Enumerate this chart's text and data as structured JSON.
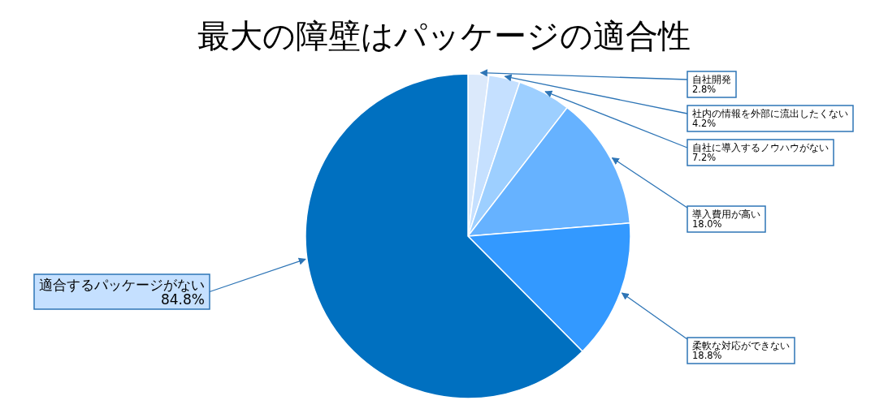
{
  "chart_data": {
    "type": "pie",
    "title": "最大の障壁はパッケージの適合性",
    "categories": [
      "自社開発",
      "社内の情報を外部に流出したくない",
      "自社に導入するノウハウがない",
      "導入費用が高い",
      "柔軟な対応ができない",
      "適合するパッケージがない"
    ],
    "values": [
      2.8,
      4.2,
      7.2,
      18.0,
      18.8,
      84.8
    ],
    "colors": [
      "#dbe9fb",
      "#c5e0ff",
      "#9dcfff",
      "#66b2ff",
      "#3399ff",
      "#0070c0"
    ],
    "value_labels": [
      "2.8%",
      "4.2%",
      "7.2%",
      "18.0%",
      "18.8%",
      "84.8%"
    ]
  }
}
